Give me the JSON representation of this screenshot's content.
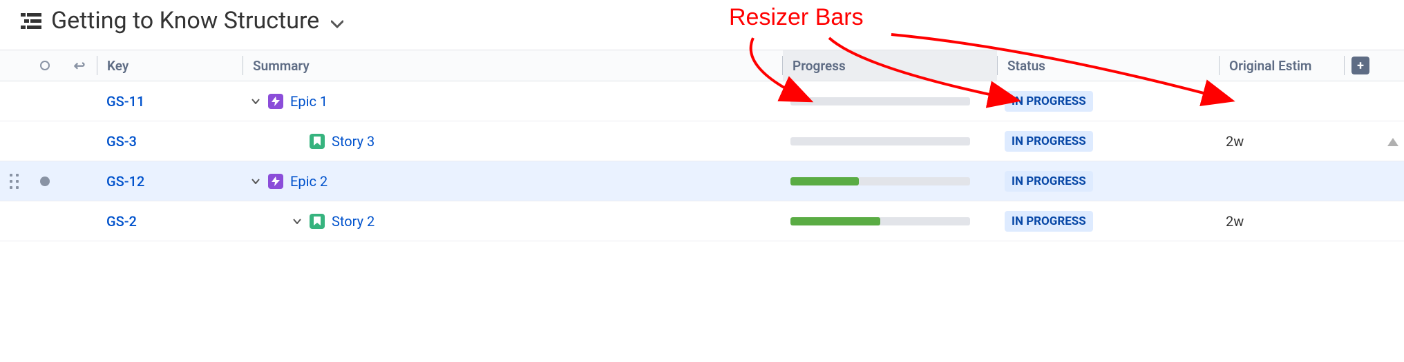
{
  "title": "Getting to Know Structure",
  "annotation": {
    "label": "Resizer Bars",
    "color": "#ff0000"
  },
  "columns": {
    "key": "Key",
    "summary": "Summary",
    "progress": "Progress",
    "status": "Status",
    "estimate": "Original Estim"
  },
  "colors": {
    "link": "#0052cc",
    "status_bg": "#deebff",
    "status_text": "#0747a6",
    "epic": "#8b4dd9",
    "story": "#36b37e",
    "progress_bg": "#e2e4e9",
    "progress_fill": "#5aac44",
    "row_highlight": "#eaf2ff",
    "header_text": "#5e6c84"
  },
  "rows": [
    {
      "key": "GS-11",
      "summary": "Epic 1",
      "type": "epic",
      "indent": 1,
      "expandable": true,
      "progress_pct": 0,
      "status": "IN PROGRESS",
      "estimate": "",
      "selected": false,
      "show_drag": false
    },
    {
      "key": "GS-3",
      "summary": "Story 3",
      "type": "story",
      "indent": 2,
      "expandable": false,
      "progress_pct": 0,
      "status": "IN PROGRESS",
      "estimate": "2w",
      "selected": false,
      "show_drag": false
    },
    {
      "key": "GS-12",
      "summary": "Epic 2",
      "type": "epic",
      "indent": 1,
      "expandable": true,
      "progress_pct": 38,
      "status": "IN PROGRESS",
      "estimate": "",
      "selected": true,
      "show_drag": true
    },
    {
      "key": "GS-2",
      "summary": "Story 2",
      "type": "story",
      "indent": 2,
      "expandable": true,
      "progress_pct": 50,
      "status": "IN PROGRESS",
      "estimate": "2w",
      "selected": false,
      "show_drag": false
    }
  ]
}
